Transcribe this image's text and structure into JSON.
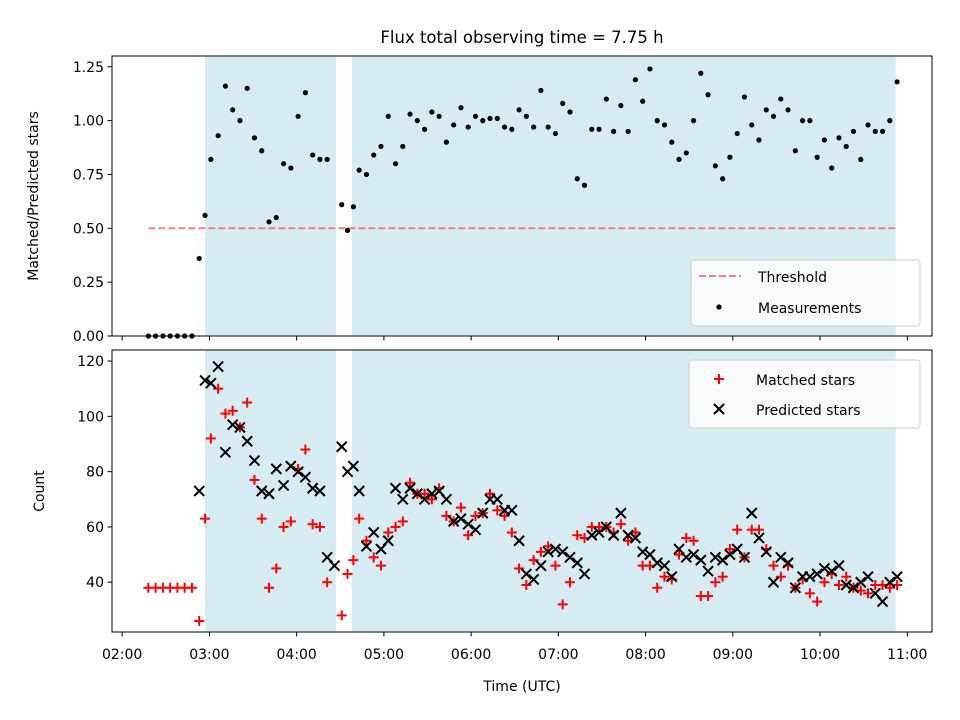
{
  "figure": {
    "title": "Flux total observing time = 7.75 h",
    "xlabel": "Time (UTC)"
  },
  "chart_data": [
    {
      "type": "scatter",
      "ylabel": "Matched/Predicted stars",
      "ylim": [
        0,
        1.3
      ],
      "yticks": [
        0.0,
        0.25,
        0.5,
        0.75,
        1.0,
        1.25
      ],
      "ytick_labels": [
        "0.00",
        "0.25",
        "0.50",
        "0.75",
        "1.00",
        "1.25"
      ],
      "xlim": [
        "01:53",
        "11:17"
      ],
      "xticks": [
        "02:00",
        "03:00",
        "04:00",
        "05:00",
        "06:00",
        "07:00",
        "08:00",
        "09:00",
        "10:00",
        "11:00"
      ],
      "grid": false,
      "legend_position": "lower-right",
      "observing_periods": [
        [
          "02:57",
          "04:27"
        ],
        [
          "04:38",
          "10:52"
        ]
      ],
      "colors": {
        "observing_band": "#add8e6",
        "threshold": "#f08080",
        "measurements": "#000000"
      },
      "threshold": {
        "name": "Threshold",
        "value": 0.5,
        "x_range": [
          "02:18",
          "10:52"
        ]
      },
      "series": [
        {
          "name": "Measurements",
          "marker": "dot",
          "x": [
            "02:18",
            "02:23",
            "02:28",
            "02:33",
            "02:38",
            "02:43",
            "02:48",
            "02:53",
            "02:57",
            "03:01",
            "03:06",
            "03:11",
            "03:16",
            "03:21",
            "03:26",
            "03:31",
            "03:36",
            "03:41",
            "03:46",
            "03:51",
            "03:56",
            "04:01",
            "04:06",
            "04:11",
            "04:16",
            "04:21",
            "04:31",
            "04:35",
            "04:39",
            "04:43",
            "04:48",
            "04:53",
            "04:58",
            "05:03",
            "05:08",
            "05:13",
            "05:18",
            "05:23",
            "05:28",
            "05:33",
            "05:38",
            "05:43",
            "05:48",
            "05:53",
            "05:58",
            "06:03",
            "06:08",
            "06:13",
            "06:18",
            "06:23",
            "06:28",
            "06:33",
            "06:38",
            "06:43",
            "06:48",
            "06:53",
            "06:58",
            "07:03",
            "07:08",
            "07:13",
            "07:18",
            "07:23",
            "07:28",
            "07:33",
            "07:38",
            "07:43",
            "07:48",
            "07:53",
            "07:58",
            "08:03",
            "08:08",
            "08:13",
            "08:18",
            "08:23",
            "08:28",
            "08:33",
            "08:38",
            "08:43",
            "08:48",
            "08:53",
            "08:58",
            "09:03",
            "09:08",
            "09:13",
            "09:18",
            "09:23",
            "09:28",
            "09:33",
            "09:38",
            "09:43",
            "09:48",
            "09:53",
            "09:58",
            "10:03",
            "10:08",
            "10:13",
            "10:18",
            "10:23",
            "10:28",
            "10:33",
            "10:38",
            "10:43",
            "10:48",
            "10:53"
          ],
          "y": [
            0,
            0,
            0,
            0,
            0,
            0,
            0,
            0.36,
            0.56,
            0.82,
            0.93,
            1.16,
            1.05,
            1.0,
            1.15,
            0.92,
            0.86,
            0.53,
            0.55,
            0.8,
            0.78,
            1.02,
            1.13,
            0.84,
            0.82,
            0.82,
            0.61,
            0.49,
            0.6,
            0.77,
            0.75,
            0.84,
            0.88,
            1.02,
            0.8,
            0.88,
            1.03,
            1.0,
            0.96,
            1.04,
            1.02,
            0.9,
            0.98,
            1.06,
            0.97,
            1.02,
            1.0,
            1.01,
            1.01,
            0.97,
            0.96,
            1.05,
            1.02,
            0.97,
            1.14,
            0.97,
            0.94,
            1.08,
            1.04,
            0.73,
            0.7,
            0.96,
            0.96,
            1.1,
            0.95,
            1.07,
            0.95,
            1.19,
            1.09,
            1.24,
            1.0,
            0.98,
            0.9,
            0.82,
            0.85,
            1.0,
            1.22,
            1.12,
            0.79,
            0.73,
            0.83,
            0.94,
            1.11,
            0.98,
            0.91,
            1.05,
            1.02,
            1.1,
            1.05,
            0.86,
            1.0,
            1.0,
            0.83,
            0.91,
            0.78,
            0.92,
            0.88,
            0.95,
            0.82,
            0.98,
            0.95,
            0.95,
            1.0,
            1.18
          ]
        }
      ]
    },
    {
      "type": "scatter",
      "ylabel": "Count",
      "ylim": [
        22,
        124
      ],
      "yticks": [
        40,
        60,
        80,
        100,
        120
      ],
      "ytick_labels": [
        "40",
        "60",
        "80",
        "100",
        "120"
      ],
      "xlim": [
        "01:53",
        "11:17"
      ],
      "xticks": [
        "02:00",
        "03:00",
        "04:00",
        "05:00",
        "06:00",
        "07:00",
        "08:00",
        "09:00",
        "10:00",
        "11:00"
      ],
      "xtick_labels": [
        "02:00",
        "03:00",
        "04:00",
        "05:00",
        "06:00",
        "07:00",
        "08:00",
        "09:00",
        "10:00",
        "11:00"
      ],
      "grid": false,
      "legend_position": "upper-right",
      "observing_periods": [
        [
          "02:57",
          "04:27"
        ],
        [
          "04:38",
          "10:52"
        ]
      ],
      "colors": {
        "observing_band": "#add8e6",
        "matched": "#ff0000",
        "predicted": "#000000"
      },
      "series": [
        {
          "name": "Matched stars",
          "marker": "plus",
          "x": [
            "02:18",
            "02:23",
            "02:28",
            "02:33",
            "02:38",
            "02:43",
            "02:48",
            "02:53",
            "02:57",
            "03:01",
            "03:06",
            "03:11",
            "03:16",
            "03:21",
            "03:26",
            "03:31",
            "03:36",
            "03:41",
            "03:46",
            "03:51",
            "03:56",
            "04:01",
            "04:06",
            "04:11",
            "04:16",
            "04:21",
            "04:31",
            "04:35",
            "04:39",
            "04:43",
            "04:48",
            "04:53",
            "04:58",
            "05:03",
            "05:08",
            "05:13",
            "05:18",
            "05:23",
            "05:28",
            "05:33",
            "05:38",
            "05:43",
            "05:48",
            "05:53",
            "05:58",
            "06:03",
            "06:08",
            "06:13",
            "06:18",
            "06:23",
            "06:28",
            "06:33",
            "06:38",
            "06:43",
            "06:48",
            "06:53",
            "06:58",
            "07:03",
            "07:08",
            "07:13",
            "07:18",
            "07:23",
            "07:28",
            "07:33",
            "07:38",
            "07:43",
            "07:48",
            "07:53",
            "07:58",
            "08:03",
            "08:08",
            "08:13",
            "08:18",
            "08:23",
            "08:28",
            "08:33",
            "08:38",
            "08:43",
            "08:48",
            "08:53",
            "08:58",
            "09:03",
            "09:08",
            "09:13",
            "09:18",
            "09:23",
            "09:28",
            "09:33",
            "09:38",
            "09:43",
            "09:48",
            "09:53",
            "09:58",
            "10:03",
            "10:08",
            "10:13",
            "10:18",
            "10:23",
            "10:28",
            "10:33",
            "10:38",
            "10:43",
            "10:48",
            "10:53"
          ],
          "y": [
            38,
            38,
            38,
            38,
            38,
            38,
            38,
            26,
            63,
            92,
            110,
            101,
            102,
            96,
            105,
            77,
            63,
            38,
            45,
            60,
            62,
            81,
            88,
            61,
            60,
            40,
            28,
            43,
            48,
            63,
            55,
            49,
            46,
            58,
            60,
            62,
            76,
            72,
            72,
            70,
            74,
            64,
            62,
            67,
            57,
            64,
            65,
            72,
            66,
            64,
            58,
            45,
            39,
            48,
            51,
            53,
            46,
            32,
            40,
            57,
            56,
            60,
            60,
            60,
            58,
            61,
            55,
            58,
            46,
            46,
            38,
            42,
            41,
            50,
            56,
            55,
            35,
            35,
            40,
            42,
            52,
            59,
            49,
            59,
            59,
            52,
            46,
            42,
            46,
            38,
            41,
            36,
            33,
            40,
            43,
            39,
            42,
            38,
            37,
            36,
            39,
            39,
            38,
            39
          ]
        },
        {
          "name": "Predicted stars",
          "marker": "x",
          "x": [
            "02:53",
            "02:57",
            "03:01",
            "03:06",
            "03:11",
            "03:16",
            "03:21",
            "03:26",
            "03:31",
            "03:36",
            "03:41",
            "03:46",
            "03:51",
            "03:56",
            "04:01",
            "04:06",
            "04:11",
            "04:16",
            "04:21",
            "04:26",
            "04:31",
            "04:35",
            "04:39",
            "04:43",
            "04:48",
            "04:53",
            "04:58",
            "05:03",
            "05:08",
            "05:13",
            "05:18",
            "05:23",
            "05:28",
            "05:33",
            "05:38",
            "05:43",
            "05:48",
            "05:53",
            "05:58",
            "06:03",
            "06:08",
            "06:13",
            "06:18",
            "06:23",
            "06:28",
            "06:33",
            "06:38",
            "06:43",
            "06:48",
            "06:53",
            "06:58",
            "07:03",
            "07:08",
            "07:13",
            "07:18",
            "07:23",
            "07:28",
            "07:33",
            "07:38",
            "07:43",
            "07:48",
            "07:53",
            "07:58",
            "08:03",
            "08:08",
            "08:13",
            "08:18",
            "08:23",
            "08:28",
            "08:33",
            "08:38",
            "08:43",
            "08:48",
            "08:53",
            "08:58",
            "09:03",
            "09:08",
            "09:13",
            "09:18",
            "09:23",
            "09:28",
            "09:33",
            "09:38",
            "09:43",
            "09:48",
            "09:53",
            "09:58",
            "10:03",
            "10:08",
            "10:13",
            "10:18",
            "10:23",
            "10:28",
            "10:33",
            "10:38",
            "10:43",
            "10:48",
            "10:53"
          ],
          "y": [
            73,
            113,
            112,
            118,
            87,
            97,
            96,
            91,
            84,
            73,
            72,
            81,
            75,
            82,
            80,
            78,
            74,
            73,
            49,
            46,
            89,
            80,
            82,
            73,
            53,
            58,
            52,
            55,
            74,
            70,
            74,
            72,
            70,
            72,
            73,
            70,
            62,
            63,
            61,
            59,
            65,
            70,
            70,
            66,
            66,
            55,
            43,
            41,
            46,
            51,
            52,
            51,
            49,
            47,
            43,
            57,
            58,
            60,
            57,
            65,
            57,
            56,
            51,
            50,
            47,
            46,
            42,
            52,
            49,
            50,
            48,
            44,
            49,
            48,
            50,
            52,
            49,
            65,
            56,
            51,
            40,
            49,
            47,
            38,
            42,
            42,
            43,
            45,
            44,
            46,
            39,
            38,
            40,
            42,
            36,
            33,
            40,
            42
          ]
        }
      ]
    }
  ]
}
